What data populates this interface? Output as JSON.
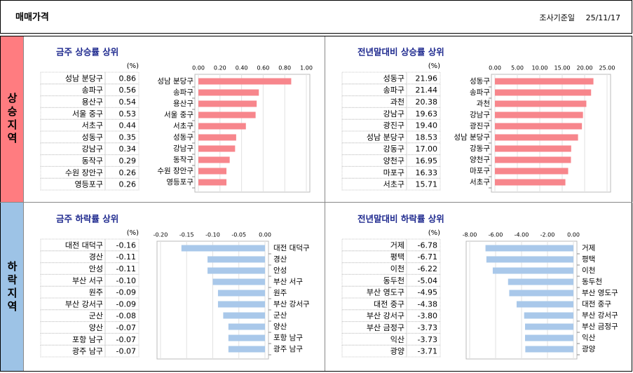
{
  "header": {
    "title": "매매가격",
    "date_label": "조사기준일",
    "date": "25/11/17"
  },
  "side_labels": [
    "상승지역",
    "하락지역"
  ],
  "chart_data": [
    {
      "type": "bar",
      "orientation": "horizontal",
      "title": "금주 상승률 상위",
      "unit": "(%)",
      "color": "#f7868c",
      "categories": [
        "성남 분당구",
        "송파구",
        "용산구",
        "서울 중구",
        "서초구",
        "성동구",
        "강남구",
        "동작구",
        "수원 장안구",
        "영등포구"
      ],
      "values": [
        0.86,
        0.56,
        0.54,
        0.53,
        0.44,
        0.35,
        0.34,
        0.29,
        0.26,
        0.26
      ],
      "value_labels": [
        "0.86",
        "0.56",
        "0.54",
        "0.53",
        "0.44",
        "0.35",
        "0.34",
        "0.29",
        "0.26",
        "0.26"
      ],
      "xlim": [
        0,
        1
      ],
      "xticks": [
        {
          "value": 0,
          "label": "0.00"
        },
        {
          "value": 0.2,
          "label": "0.20"
        },
        {
          "value": 0.4,
          "label": "0.40"
        },
        {
          "value": 0.6,
          "label": "0.60"
        },
        {
          "value": 0.8,
          "label": "0.80"
        },
        {
          "value": 1,
          "label": "1.00"
        }
      ]
    },
    {
      "type": "bar",
      "orientation": "horizontal",
      "title": "전년말대비 상승률 상위",
      "unit": "(%)",
      "color": "#f7868c",
      "categories": [
        "성동구",
        "송파구",
        "과천",
        "강남구",
        "광진구",
        "성남 분당구",
        "강동구",
        "양천구",
        "마포구",
        "서초구"
      ],
      "values": [
        21.96,
        21.44,
        20.38,
        19.63,
        19.4,
        18.53,
        17,
        16.95,
        16.33,
        15.71
      ],
      "value_labels": [
        "21.96",
        "21.44",
        "20.38",
        "19.63",
        "19.40",
        "18.53",
        "17.00",
        "16.95",
        "16.33",
        "15.71"
      ],
      "xlim": [
        0,
        25
      ],
      "xticks": [
        {
          "value": 0,
          "label": "0.00"
        },
        {
          "value": 5,
          "label": "5.00"
        },
        {
          "value": 10,
          "label": "10.00"
        },
        {
          "value": 15,
          "label": "15.00"
        },
        {
          "value": 20,
          "label": "20.00"
        },
        {
          "value": 25,
          "label": "25.00"
        }
      ]
    },
    {
      "type": "bar",
      "orientation": "horizontal",
      "title": "금주 하락률 상위",
      "unit": "(%)",
      "color": "#a9c8ea",
      "categories": [
        "대전 대덕구",
        "경산",
        "안성",
        "부산 서구",
        "원주",
        "부산 강서구",
        "군산",
        "양산",
        "포항 남구",
        "광주 남구"
      ],
      "values": [
        -0.16,
        -0.11,
        -0.11,
        -0.1,
        -0.09,
        -0.09,
        -0.08,
        -0.07,
        -0.07,
        -0.07
      ],
      "value_labels": [
        "-0.16",
        "-0.11",
        "-0.11",
        "-0.10",
        "-0.09",
        "-0.09",
        "-0.08",
        "-0.07",
        "-0.07",
        "-0.07"
      ],
      "xlim": [
        -0.2,
        0
      ],
      "xticks": [
        {
          "value": -0.2,
          "label": "-0.20"
        },
        {
          "value": -0.15,
          "label": "-0.15"
        },
        {
          "value": -0.1,
          "label": "-0.10"
        },
        {
          "value": -0.05,
          "label": "-0.05"
        },
        {
          "value": 0,
          "label": "0.00"
        }
      ]
    },
    {
      "type": "bar",
      "orientation": "horizontal",
      "title": "전년말대비 하락률 상위",
      "unit": "(%)",
      "color": "#a9c8ea",
      "categories": [
        "거제",
        "평택",
        "이천",
        "동두천",
        "부산 영도구",
        "대전 중구",
        "부산 강서구",
        "부산 금정구",
        "익산",
        "광양"
      ],
      "values": [
        -6.78,
        -6.71,
        -6.22,
        -5.04,
        -4.95,
        -4.38,
        -3.8,
        -3.73,
        -3.73,
        -3.71
      ],
      "value_labels": [
        "-6.78",
        "-6.71",
        "-6.22",
        "-5.04",
        "-4.95",
        "-4.38",
        "-3.80",
        "-3.73",
        "-3.73",
        "-3.71"
      ],
      "xlim": [
        -8,
        0
      ],
      "xticks": [
        {
          "value": -8,
          "label": "-8.00"
        },
        {
          "value": -6,
          "label": "-6.00"
        },
        {
          "value": -4,
          "label": "-4.00"
        },
        {
          "value": -2,
          "label": "-2.00"
        },
        {
          "value": 0,
          "label": "0.00"
        }
      ]
    }
  ]
}
